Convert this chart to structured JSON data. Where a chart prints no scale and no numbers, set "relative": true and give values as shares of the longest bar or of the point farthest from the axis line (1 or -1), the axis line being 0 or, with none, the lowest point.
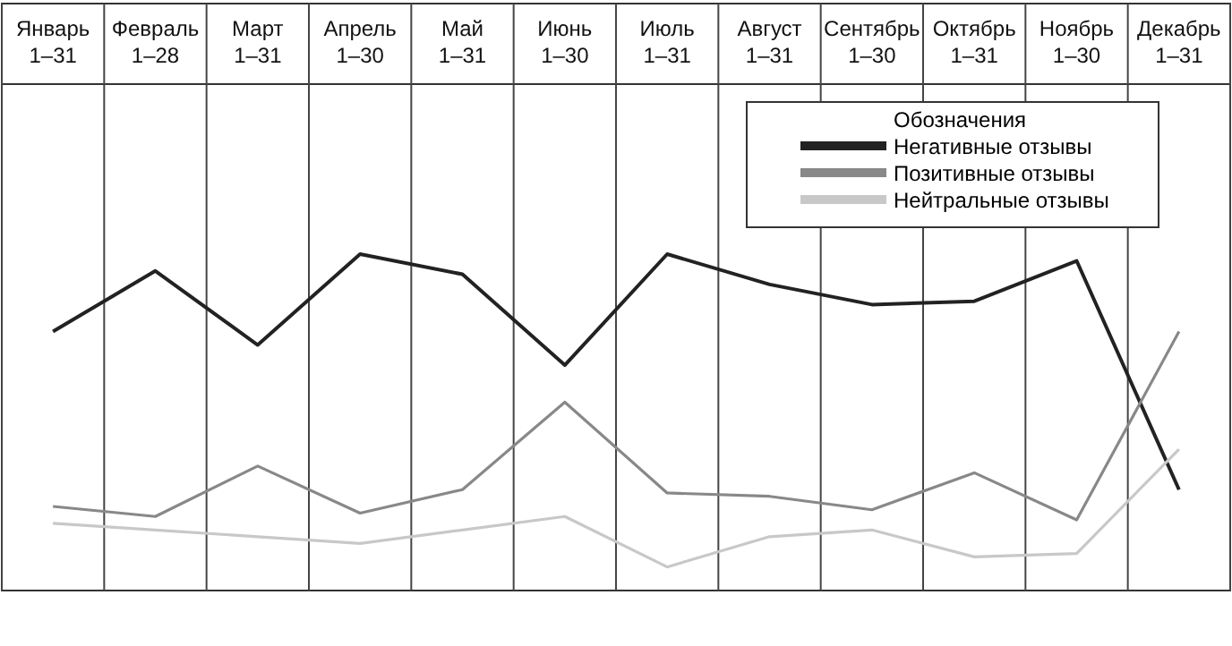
{
  "chart_data": {
    "type": "line",
    "relative": true,
    "grid": "x",
    "legend": "top right",
    "legend_title": "Обозначения",
    "categories": [
      "Январь\n1–31",
      "Февраль\n1–28",
      "Март\n1–31",
      "Апрель\n1–30",
      "Май\n1–31",
      "Июнь\n1–30",
      "Июль\n1–31",
      "Август\n1–31",
      "Сентябрь\n1–30",
      "Октябрь\n1–31",
      "Ноябрь\n1–30",
      "Декабрь\n1–31"
    ],
    "series": [
      {
        "name": "Негативные отзывы",
        "color": "#222222",
        "values": [
          0.77,
          0.95,
          0.73,
          1.0,
          0.94,
          0.67,
          1.0,
          0.91,
          0.85,
          0.86,
          0.98,
          0.3
        ]
      },
      {
        "name": "Позитивные отзывы",
        "color": "#888888",
        "values": [
          0.25,
          0.22,
          0.37,
          0.23,
          0.3,
          0.56,
          0.29,
          0.28,
          0.24,
          0.35,
          0.21,
          0.77
        ]
      },
      {
        "name": "Нейтральные отзывы",
        "color": "#c8c8c8",
        "values": [
          0.2,
          0.18,
          0.16,
          0.14,
          0.18,
          0.22,
          0.07,
          0.16,
          0.18,
          0.1,
          0.11,
          0.42
        ]
      }
    ]
  }
}
